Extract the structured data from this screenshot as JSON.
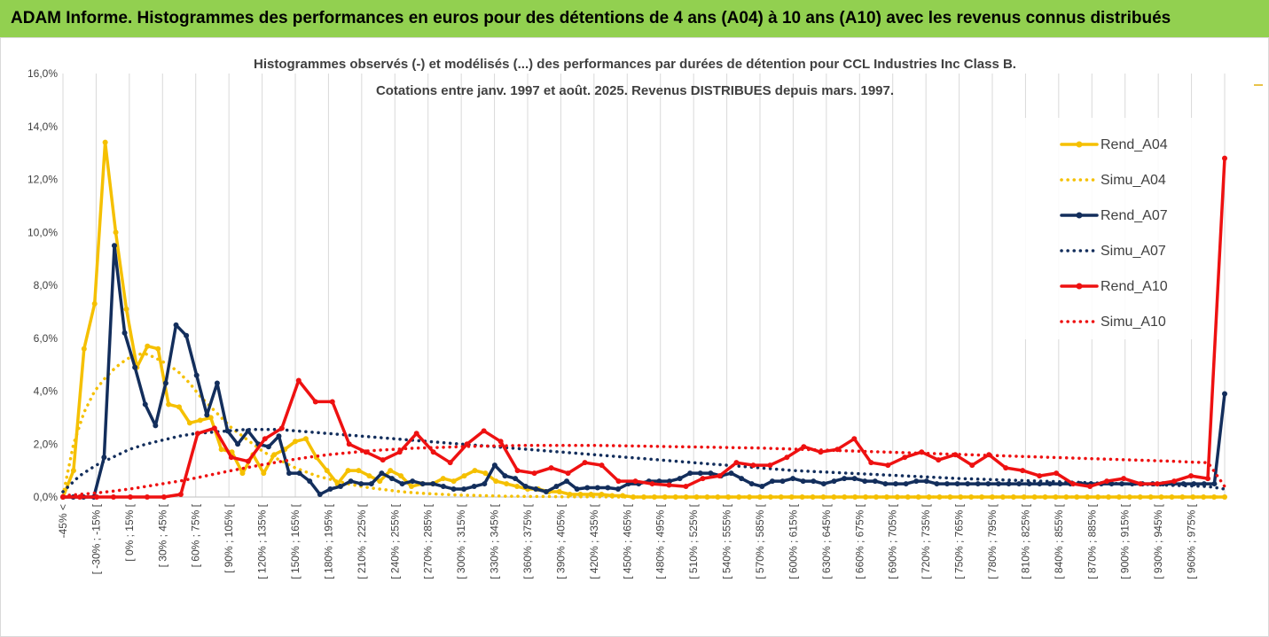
{
  "header": {
    "title": "ADAM Informe. Histogrammes des performances en euros pour des détentions de 4 ans (A04) à 10 ans (A10) avec les revenus connus distribués"
  },
  "colors": {
    "header_bg": "#92d050",
    "A04": "#f5c000",
    "A07": "#132e5c",
    "A10": "#ee1111"
  },
  "chart_data": {
    "type": "line",
    "title": "Histogrammes observés (-) et modélisés (...) des performances par durées de détention pour CCL Industries Inc Class B.",
    "subtitle": "Cotations entre janv. 1997 et août. 2025. Revenus DISTRIBUES depuis mars. 1997.",
    "xlabel": "",
    "ylabel": "",
    "ylim": [
      0,
      16
    ],
    "yticks": [
      "0,0%",
      "2,0%",
      "4,0%",
      "6,0%",
      "8,0%",
      "10,0%",
      "12,0%",
      "14,0%",
      "16,0%"
    ],
    "grid": "vertical",
    "legend_position": "right",
    "x_labels": [
      "-45% <",
      "[ -30% ; -15% [",
      "[ 0% ; 15% [",
      "[ 30% ; 45% [",
      "[ 60% ; 75% [",
      "[ 90% ; 105% [",
      "[ 120% ; 135% [",
      "[ 150% ; 165% [",
      "[ 180% ; 195% [",
      "[ 210% ; 225% [",
      "[ 240% ; 255% [",
      "[ 270% ; 285% [",
      "[ 300% ; 315% [",
      "[ 330% ; 345% [",
      "[ 360% ; 375% [",
      "[ 390% ; 405% [",
      "[ 420% ; 435% [",
      "[ 450% ; 465% [",
      "[ 480% ; 495% [",
      "[ 510% ; 525% [",
      "[ 540% ; 555% [",
      "[ 570% ; 585% [",
      "[ 600% ; 615% [",
      "[ 630% ; 645% [",
      "[ 660% ; 675% [",
      "[ 690% ; 705% [",
      "[ 720% ; 735% [",
      "[ 750% ; 765% [",
      "[ 780% ; 795% [",
      "[ 810% ; 825% [",
      "[ 840% ; 855% [",
      "[ 870% ; 885% [",
      "[ 900% ; 915% [",
      "[ 930% ; 945% [",
      "[ 960% ; 975% ["
    ],
    "label_every": 2,
    "series": [
      {
        "name": "Rend_A04",
        "style": "solid",
        "color": "#f5c000",
        "values": [
          0,
          1,
          5.6,
          7.3,
          13.4,
          10,
          7.1,
          4.9,
          5.7,
          5.6,
          3.5,
          3.4,
          2.8,
          2.9,
          3,
          1.8,
          1.7,
          0.9,
          1.6,
          0.9,
          1.6,
          1.8,
          2.1,
          2.2,
          1.5,
          1,
          0.5,
          1,
          1,
          0.8,
          0.6,
          1,
          0.8,
          0.4,
          0.5,
          0.5,
          0.7,
          0.6,
          0.8,
          1,
          0.9,
          0.6,
          0.5,
          0.4,
          0.3,
          0.3,
          0.2,
          0.2,
          0.1,
          0.1,
          0.1,
          0.1,
          0.05,
          0.05,
          0,
          0,
          0,
          0,
          0,
          0,
          0,
          0,
          0,
          0,
          0,
          0,
          0,
          0,
          0,
          0,
          0,
          0,
          0,
          0,
          0,
          0,
          0,
          0,
          0,
          0,
          0,
          0,
          0,
          0,
          0,
          0,
          0,
          0,
          0,
          0,
          0,
          0,
          0,
          0,
          0,
          0,
          0,
          0,
          0,
          0,
          0,
          0,
          0,
          0,
          0,
          0,
          0,
          0,
          0,
          0,
          0
        ]
      },
      {
        "name": "Simu_A04",
        "style": "dotted",
        "color": "#f5c000",
        "values": [
          0.05,
          2,
          3.2,
          4,
          4.5,
          4.9,
          5.2,
          5.4,
          5.4,
          5.2,
          5,
          4.7,
          4.3,
          3.8,
          3.4,
          3,
          2.6,
          2.3,
          2,
          1.7,
          1.5,
          1.3,
          1.1,
          0.95,
          0.8,
          0.7,
          0.6,
          0.5,
          0.42,
          0.35,
          0.3,
          0.25,
          0.2,
          0.17,
          0.14,
          0.12,
          0.1,
          0.08,
          0.07,
          0.06,
          0.05,
          0.04,
          0.03,
          0.03,
          0.02,
          0.02,
          0.02,
          0.01,
          0.01,
          0.01,
          0.01,
          0.01,
          0,
          0,
          0,
          0,
          0,
          0,
          0,
          0,
          0,
          0,
          0,
          0,
          0,
          0,
          0,
          0,
          0,
          0,
          0,
          0,
          0,
          0,
          0,
          0,
          0,
          0,
          0,
          0,
          0,
          0,
          0,
          0,
          0,
          0,
          0,
          0,
          0,
          0,
          0,
          0,
          0,
          0,
          0,
          0,
          0,
          0,
          0,
          0,
          0,
          0,
          0,
          0,
          0,
          0,
          0,
          0,
          0,
          0,
          0
        ]
      },
      {
        "name": "Rend_A07",
        "style": "solid",
        "color": "#132e5c",
        "values": [
          0,
          0,
          0,
          0,
          1.5,
          9.5,
          6.2,
          4.9,
          3.5,
          2.7,
          4.3,
          6.5,
          6.1,
          4.6,
          3.1,
          4.3,
          2.5,
          2,
          2.5,
          2,
          1.9,
          2.3,
          0.9,
          0.9,
          0.6,
          0.1,
          0.3,
          0.4,
          0.6,
          0.5,
          0.5,
          0.9,
          0.7,
          0.5,
          0.6,
          0.5,
          0.5,
          0.4,
          0.3,
          0.3,
          0.4,
          0.5,
          1.2,
          0.8,
          0.7,
          0.4,
          0.3,
          0.2,
          0.4,
          0.6,
          0.3,
          0.35,
          0.35,
          0.35,
          0.3,
          0.5,
          0.5,
          0.6,
          0.6,
          0.6,
          0.7,
          0.9,
          0.9,
          0.9,
          0.8,
          0.9,
          0.7,
          0.5,
          0.4,
          0.6,
          0.6,
          0.7,
          0.6,
          0.6,
          0.5,
          0.6,
          0.7,
          0.7,
          0.6,
          0.6,
          0.5,
          0.5,
          0.5,
          0.6,
          0.6,
          0.5,
          0.5,
          0.5,
          0.5,
          0.5,
          0.5,
          0.5,
          0.5,
          0.5,
          0.5,
          0.5,
          0.5,
          0.5,
          0.5,
          0.5,
          0.5,
          0.5,
          0.5,
          0.5,
          0.5,
          0.5,
          0.5,
          0.5,
          0.5,
          0.5,
          0.5,
          0.5,
          0.5,
          3.9
        ]
      },
      {
        "name": "Simu_A07",
        "style": "dotted",
        "color": "#132e5c",
        "values": [
          0.2,
          0.8,
          1.2,
          1.5,
          1.8,
          2,
          2.15,
          2.3,
          2.4,
          2.45,
          2.5,
          2.55,
          2.55,
          2.55,
          2.5,
          2.45,
          2.4,
          2.35,
          2.3,
          2.25,
          2.2,
          2.15,
          2.1,
          2.05,
          2,
          1.95,
          1.9,
          1.85,
          1.8,
          1.75,
          1.7,
          1.65,
          1.6,
          1.55,
          1.5,
          1.45,
          1.4,
          1.35,
          1.3,
          1.25,
          1.2,
          1.15,
          1.1,
          1.05,
          1,
          0.97,
          0.94,
          0.91,
          0.88,
          0.85,
          0.82,
          0.79,
          0.76,
          0.73,
          0.7,
          0.68,
          0.66,
          0.64,
          0.62,
          0.6,
          0.58,
          0.56,
          0.54,
          0.52,
          0.5,
          0.48,
          0.46,
          0.44,
          0.42,
          0.4,
          0.3
        ]
      },
      {
        "name": "Rend_A10",
        "style": "solid",
        "color": "#ee1111",
        "values": [
          0,
          0,
          0,
          0,
          0,
          0,
          0,
          0.1,
          2.4,
          2.6,
          1.5,
          1.35,
          2.2,
          2.6,
          4.4,
          3.6,
          3.6,
          2,
          1.7,
          1.4,
          1.7,
          2.4,
          1.7,
          1.3,
          2,
          2.5,
          2.1,
          1,
          0.9,
          1.1,
          0.9,
          1.3,
          1.2,
          0.6,
          0.6,
          0.5,
          0.45,
          0.4,
          0.7,
          0.8,
          1.3,
          1.2,
          1.2,
          1.5,
          1.9,
          1.7,
          1.8,
          2.2,
          1.3,
          1.2,
          1.5,
          1.7,
          1.4,
          1.6,
          1.2,
          1.6,
          1.1,
          1,
          0.8,
          0.9,
          0.5,
          0.4,
          0.6,
          0.7,
          0.5,
          0.5,
          0.6,
          0.8,
          0.7,
          12.8
        ]
      },
      {
        "name": "Simu_A10",
        "style": "dotted",
        "color": "#ee1111",
        "values": [
          0.05,
          0.1,
          0.15,
          0.22,
          0.3,
          0.4,
          0.5,
          0.6,
          0.72,
          0.85,
          0.98,
          1.1,
          1.22,
          1.33,
          1.43,
          1.52,
          1.6,
          1.66,
          1.72,
          1.77,
          1.8,
          1.84,
          1.86,
          1.88,
          1.9,
          1.92,
          1.93,
          1.94,
          1.95,
          1.95,
          1.95,
          1.95,
          1.95,
          1.94,
          1.93,
          1.92,
          1.91,
          1.9,
          1.89,
          1.88,
          1.87,
          1.86,
          1.85,
          1.83,
          1.81,
          1.79,
          1.77,
          1.75,
          1.73,
          1.71,
          1.69,
          1.67,
          1.65,
          1.63,
          1.61,
          1.59,
          1.57,
          1.55,
          1.53,
          1.51,
          1.49,
          1.47,
          1.45,
          1.43,
          1.41,
          1.39,
          1.37,
          1.35,
          1.32,
          1.3,
          0.4
        ]
      }
    ]
  }
}
